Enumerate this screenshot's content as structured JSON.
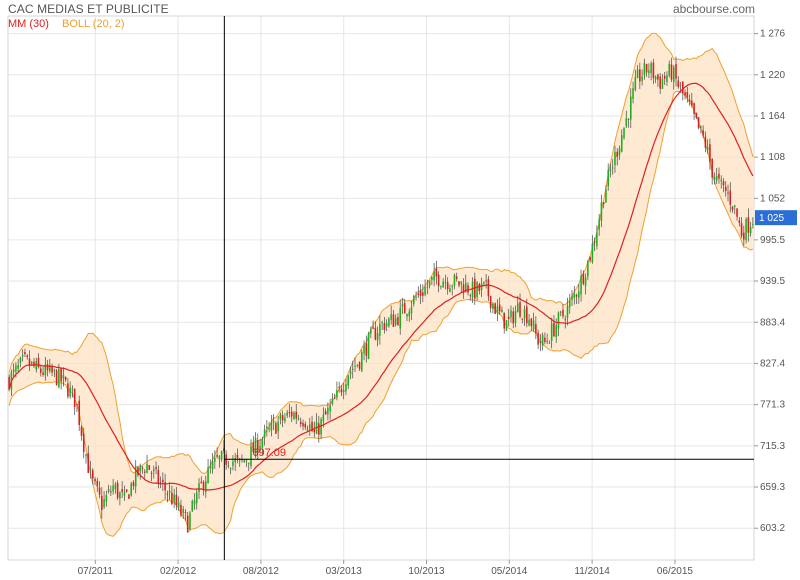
{
  "header": {
    "title": "CAC MEDIAS ET PUBLICITE",
    "source": "abcbourse.com"
  },
  "chart_data": {
    "type": "candlestick",
    "legend": [
      {
        "label": "MM (30)",
        "color": "#e02020"
      },
      {
        "label": "BOLL (20, 2)",
        "color": "#f0a030"
      }
    ],
    "y_ticks": [
      "1 276",
      "1 220",
      "1 164",
      "1 108",
      "1 052",
      "995.5",
      "939.5",
      "883.4",
      "827.4",
      "771.3",
      "715.3",
      "659.3",
      "603.2"
    ],
    "x_ticks": [
      "07/2011",
      "02/2012",
      "08/2012",
      "03/2013",
      "10/2013",
      "05/2014",
      "11/2014",
      "06/2015"
    ],
    "ylim": [
      560,
      1300
    ],
    "current_value": 1025,
    "current_label": "1 025",
    "crosshair": {
      "value": 697.09,
      "label": "697.09",
      "date_fraction": 0.29
    },
    "close_anchors": [
      [
        0.0,
        805
      ],
      [
        0.02,
        830
      ],
      [
        0.04,
        818
      ],
      [
        0.06,
        812
      ],
      [
        0.075,
        800
      ],
      [
        0.09,
        775
      ],
      [
        0.1,
        720
      ],
      [
        0.11,
        670
      ],
      [
        0.125,
        635
      ],
      [
        0.14,
        660
      ],
      [
        0.155,
        640
      ],
      [
        0.17,
        675
      ],
      [
        0.185,
        690
      ],
      [
        0.2,
        668
      ],
      [
        0.215,
        650
      ],
      [
        0.23,
        625
      ],
      [
        0.24,
        610
      ],
      [
        0.25,
        640
      ],
      [
        0.265,
        675
      ],
      [
        0.28,
        695
      ],
      [
        0.295,
        698
      ],
      [
        0.31,
        690
      ],
      [
        0.325,
        705
      ],
      [
        0.34,
        725
      ],
      [
        0.36,
        745
      ],
      [
        0.38,
        760
      ],
      [
        0.4,
        750
      ],
      [
        0.41,
        730
      ],
      [
        0.425,
        755
      ],
      [
        0.44,
        780
      ],
      [
        0.455,
        815
      ],
      [
        0.47,
        830
      ],
      [
        0.485,
        860
      ],
      [
        0.5,
        880
      ],
      [
        0.52,
        888
      ],
      [
        0.54,
        910
      ],
      [
        0.56,
        930
      ],
      [
        0.575,
        945
      ],
      [
        0.59,
        940
      ],
      [
        0.61,
        935
      ],
      [
        0.625,
        925
      ],
      [
        0.64,
        930
      ],
      [
        0.655,
        900
      ],
      [
        0.67,
        880
      ],
      [
        0.685,
        905
      ],
      [
        0.7,
        890
      ],
      [
        0.71,
        860
      ],
      [
        0.72,
        855
      ],
      [
        0.735,
        880
      ],
      [
        0.75,
        900
      ],
      [
        0.765,
        930
      ],
      [
        0.78,
        970
      ],
      [
        0.79,
        1010
      ],
      [
        0.8,
        1060
      ],
      [
        0.815,
        1110
      ],
      [
        0.83,
        1160
      ],
      [
        0.845,
        1215
      ],
      [
        0.86,
        1230
      ],
      [
        0.875,
        1210
      ],
      [
        0.89,
        1225
      ],
      [
        0.905,
        1195
      ],
      [
        0.915,
        1175
      ],
      [
        0.925,
        1150
      ],
      [
        0.935,
        1130
      ],
      [
        0.945,
        1090
      ],
      [
        0.955,
        1070
      ],
      [
        0.965,
        1060
      ],
      [
        0.975,
        1040
      ],
      [
        0.985,
        1005
      ],
      [
        1.0,
        1025
      ]
    ]
  }
}
